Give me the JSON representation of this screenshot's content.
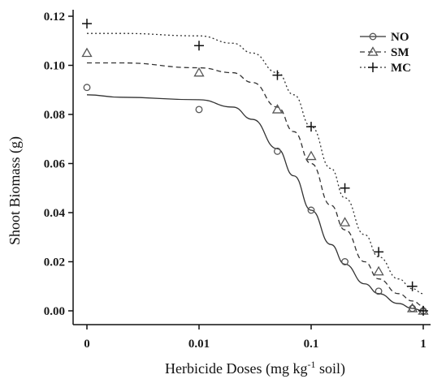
{
  "chart_data": {
    "type": "scatter",
    "xlabel": "Herbicide Doses (mg kg-1 soil)",
    "xlabel_parts": {
      "main": "Herbicide Doses (mg kg",
      "superscript": "-1",
      "tail": " soil)"
    },
    "ylabel": "Shoot Biomass (g)",
    "x_scale": "log (dose 0 plotted at left edge)",
    "x_ticks": [
      "0",
      "0.01",
      "0.1",
      "1"
    ],
    "y_ticks": [
      "0.00",
      "0.02",
      "0.04",
      "0.06",
      "0.08",
      "0.10",
      "0.12"
    ],
    "ylim": [
      0,
      0.12
    ],
    "grid": false,
    "legend_position": "top-right",
    "series": [
      {
        "name": "NO",
        "marker": "circle",
        "line_style": "solid",
        "points": [
          {
            "x": 0,
            "y": 0.091
          },
          {
            "x": 0.01,
            "y": 0.082
          },
          {
            "x": 0.05,
            "y": 0.065
          },
          {
            "x": 0.1,
            "y": 0.041
          },
          {
            "x": 0.2,
            "y": 0.02
          },
          {
            "x": 0.4,
            "y": 0.008
          },
          {
            "x": 0.8,
            "y": 0.001
          },
          {
            "x": 1,
            "y": 0.0
          }
        ],
        "fit_curve": [
          {
            "x": 0,
            "y": 0.088
          },
          {
            "x": 0.005,
            "y": 0.087
          },
          {
            "x": 0.01,
            "y": 0.086
          },
          {
            "x": 0.02,
            "y": 0.083
          },
          {
            "x": 0.03,
            "y": 0.078
          },
          {
            "x": 0.05,
            "y": 0.066
          },
          {
            "x": 0.07,
            "y": 0.055
          },
          {
            "x": 0.1,
            "y": 0.041
          },
          {
            "x": 0.15,
            "y": 0.027
          },
          {
            "x": 0.2,
            "y": 0.019
          },
          {
            "x": 0.3,
            "y": 0.011
          },
          {
            "x": 0.4,
            "y": 0.007
          },
          {
            "x": 0.6,
            "y": 0.003
          },
          {
            "x": 0.8,
            "y": 0.001
          },
          {
            "x": 1,
            "y": 0.0
          }
        ]
      },
      {
        "name": "SM",
        "marker": "triangle",
        "line_style": "dashed",
        "points": [
          {
            "x": 0,
            "y": 0.105
          },
          {
            "x": 0.01,
            "y": 0.097
          },
          {
            "x": 0.05,
            "y": 0.082
          },
          {
            "x": 0.1,
            "y": 0.063
          },
          {
            "x": 0.2,
            "y": 0.036
          },
          {
            "x": 0.4,
            "y": 0.016
          },
          {
            "x": 0.8,
            "y": 0.001
          },
          {
            "x": 1,
            "y": 0.0
          }
        ],
        "fit_curve": [
          {
            "x": 0,
            "y": 0.101
          },
          {
            "x": 0.005,
            "y": 0.101
          },
          {
            "x": 0.01,
            "y": 0.099
          },
          {
            "x": 0.02,
            "y": 0.097
          },
          {
            "x": 0.03,
            "y": 0.093
          },
          {
            "x": 0.05,
            "y": 0.083
          },
          {
            "x": 0.07,
            "y": 0.073
          },
          {
            "x": 0.1,
            "y": 0.06
          },
          {
            "x": 0.15,
            "y": 0.043
          },
          {
            "x": 0.2,
            "y": 0.033
          },
          {
            "x": 0.3,
            "y": 0.02
          },
          {
            "x": 0.4,
            "y": 0.013
          },
          {
            "x": 0.6,
            "y": 0.007
          },
          {
            "x": 0.8,
            "y": 0.004
          },
          {
            "x": 1,
            "y": 0.002
          }
        ]
      },
      {
        "name": "MC",
        "marker": "plus",
        "line_style": "dotted",
        "points": [
          {
            "x": 0,
            "y": 0.117
          },
          {
            "x": 0.01,
            "y": 0.108
          },
          {
            "x": 0.05,
            "y": 0.096
          },
          {
            "x": 0.1,
            "y": 0.075
          },
          {
            "x": 0.2,
            "y": 0.05
          },
          {
            "x": 0.4,
            "y": 0.024
          },
          {
            "x": 0.8,
            "y": 0.01
          },
          {
            "x": 1,
            "y": 0.0
          }
        ],
        "fit_curve": [
          {
            "x": 0,
            "y": 0.113
          },
          {
            "x": 0.005,
            "y": 0.113
          },
          {
            "x": 0.01,
            "y": 0.112
          },
          {
            "x": 0.02,
            "y": 0.109
          },
          {
            "x": 0.03,
            "y": 0.105
          },
          {
            "x": 0.05,
            "y": 0.097
          },
          {
            "x": 0.07,
            "y": 0.088
          },
          {
            "x": 0.1,
            "y": 0.075
          },
          {
            "x": 0.15,
            "y": 0.058
          },
          {
            "x": 0.2,
            "y": 0.046
          },
          {
            "x": 0.3,
            "y": 0.031
          },
          {
            "x": 0.4,
            "y": 0.022
          },
          {
            "x": 0.6,
            "y": 0.013
          },
          {
            "x": 0.8,
            "y": 0.009
          },
          {
            "x": 1,
            "y": 0.007
          }
        ]
      }
    ],
    "colors": {
      "line": "#333333",
      "marker": "#555555",
      "axis": "#111111"
    }
  }
}
